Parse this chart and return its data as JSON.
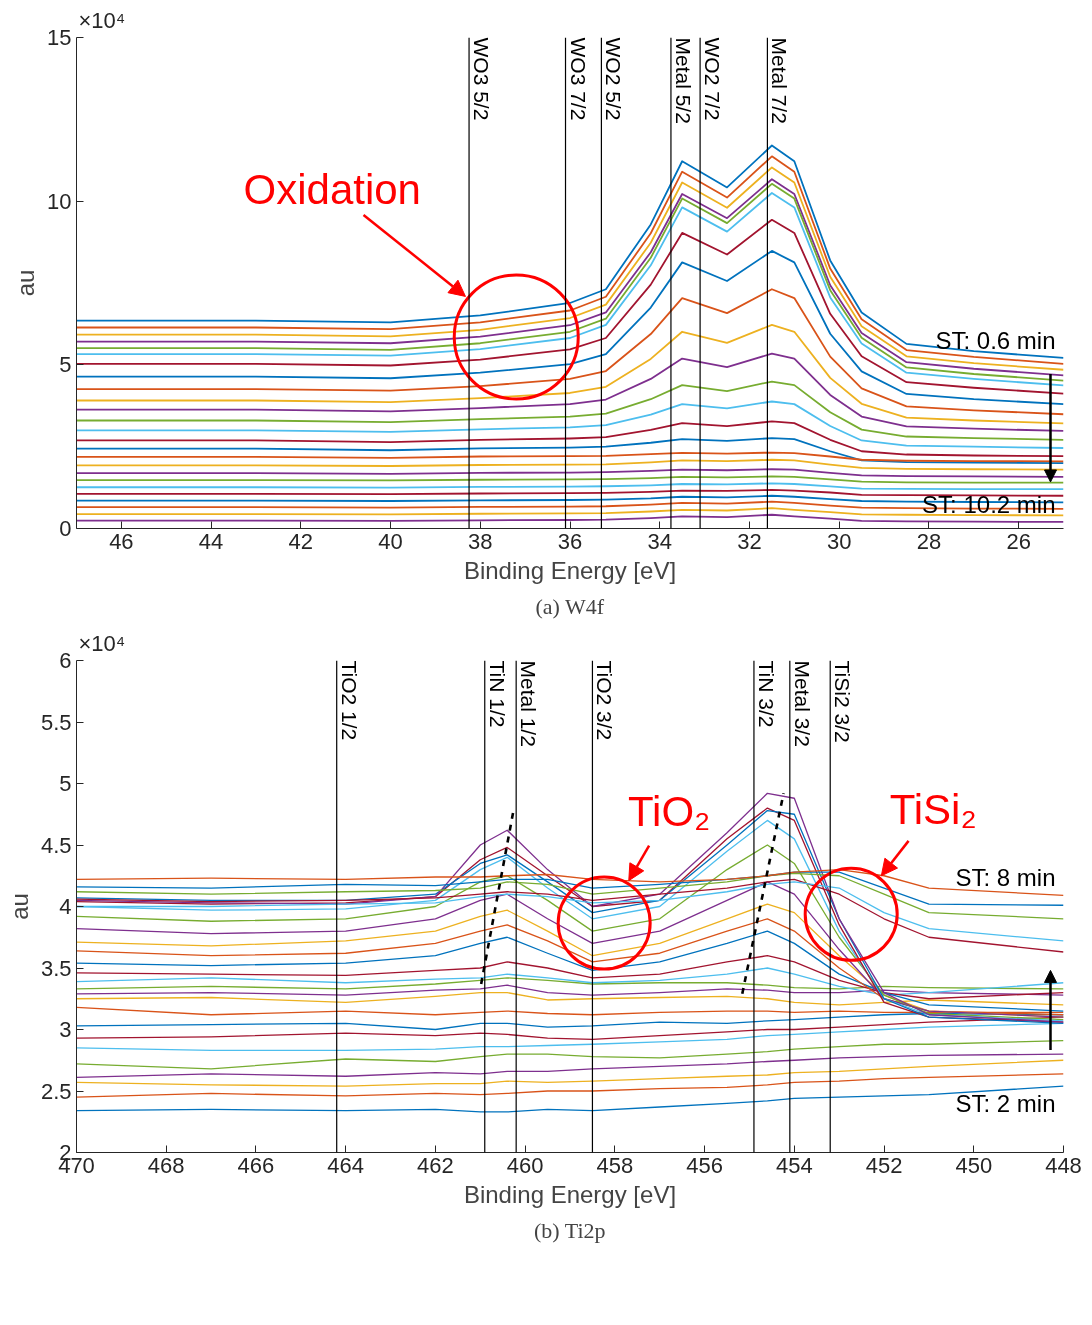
{
  "chart_data": [
    {
      "type": "line",
      "xlabel": "Binding Energy [eV]",
      "ylabel": "au",
      "xlim": [
        47,
        25
      ],
      "xticks": [
        46,
        44,
        42,
        40,
        38,
        36,
        34,
        32,
        30,
        28,
        26
      ],
      "ylim": [
        0,
        15
      ],
      "yticks": [
        0,
        5,
        10,
        15
      ],
      "x": [
        47,
        43,
        40,
        38,
        36,
        35.2,
        34.2,
        33.5,
        32.5,
        31.5,
        31,
        30.2,
        29.5,
        28.5,
        27,
        25
      ],
      "series": [
        {
          "color": "#0072bd",
          "values": [
            6.35,
            6.35,
            6.3,
            6.51,
            6.89,
            7.31,
            9.29,
            11.22,
            10.42,
            11.7,
            11.22,
            8.19,
            6.6,
            5.64,
            5.42,
            5.21
          ]
        },
        {
          "color": "#d95319",
          "values": [
            6.14,
            6.14,
            6.09,
            6.3,
            6.66,
            7.08,
            9.02,
            10.9,
            10.11,
            11.37,
            10.9,
            7.94,
            6.39,
            5.45,
            5.24,
            5.03
          ]
        },
        {
          "color": "#edb120",
          "values": [
            5.92,
            5.92,
            5.87,
            6.07,
            6.43,
            6.84,
            8.73,
            10.57,
            9.8,
            11.03,
            10.57,
            7.69,
            6.18,
            5.26,
            5.05,
            4.85
          ]
        },
        {
          "color": "#7e2f8e",
          "values": [
            5.71,
            5.71,
            5.66,
            5.86,
            6.21,
            6.6,
            8.44,
            10.22,
            9.48,
            10.67,
            10.22,
            7.43,
            5.97,
            5.08,
            4.88,
            4.68
          ]
        },
        {
          "color": "#77ac30",
          "values": [
            5.51,
            5.51,
            5.46,
            5.66,
            6.01,
            6.41,
            8.27,
            10.08,
            9.33,
            10.53,
            10.08,
            7.28,
            5.83,
            4.92,
            4.72,
            4.52
          ]
        },
        {
          "color": "#4dbeee",
          "values": [
            5.33,
            5.33,
            5.28,
            5.48,
            5.82,
            6.22,
            8.04,
            9.81,
            9.07,
            10.25,
            9.81,
            7.06,
            5.65,
            4.76,
            4.57,
            4.37
          ]
        },
        {
          "color": "#a2142f",
          "values": [
            5.03,
            5.03,
            4.98,
            5.16,
            5.47,
            5.82,
            7.45,
            9.03,
            8.37,
            9.43,
            9.03,
            6.56,
            5.26,
            4.47,
            4.3,
            4.12
          ]
        },
        {
          "color": "#0072bd",
          "values": [
            4.64,
            4.64,
            4.59,
            4.76,
            5.02,
            5.33,
            6.75,
            8.13,
            7.56,
            8.48,
            8.13,
            5.95,
            4.8,
            4.11,
            3.95,
            3.8
          ]
        },
        {
          "color": "#d95319",
          "values": [
            4.26,
            4.26,
            4.21,
            4.35,
            4.57,
            4.81,
            5.94,
            7.04,
            6.58,
            7.31,
            7.04,
            5.25,
            4.28,
            3.73,
            3.61,
            3.49
          ]
        },
        {
          "color": "#edb120",
          "values": [
            3.91,
            3.91,
            3.86,
            3.98,
            4.14,
            4.33,
            5.18,
            6.01,
            5.67,
            6.22,
            6.01,
            4.6,
            3.81,
            3.39,
            3.3,
            3.21
          ]
        },
        {
          "color": "#7e2f8e",
          "values": [
            3.63,
            3.63,
            3.58,
            3.68,
            3.8,
            3.94,
            4.57,
            5.19,
            4.93,
            5.34,
            5.19,
            4.08,
            3.42,
            3.12,
            3.05,
            2.98
          ]
        },
        {
          "color": "#77ac30",
          "values": [
            3.3,
            3.3,
            3.25,
            3.34,
            3.42,
            3.51,
            3.95,
            4.38,
            4.2,
            4.49,
            4.38,
            3.55,
            3.02,
            2.81,
            2.76,
            2.71
          ]
        },
        {
          "color": "#4dbeee",
          "values": [
            3.0,
            3.0,
            2.95,
            3.03,
            3.09,
            3.16,
            3.48,
            3.8,
            3.67,
            3.88,
            3.8,
            3.13,
            2.69,
            2.53,
            2.5,
            2.46
          ]
        },
        {
          "color": "#a2142f",
          "values": [
            2.69,
            2.69,
            2.64,
            2.71,
            2.75,
            2.79,
            3.01,
            3.22,
            3.13,
            3.27,
            3.22,
            2.71,
            2.36,
            2.26,
            2.23,
            2.21
          ]
        },
        {
          "color": "#0072bd",
          "values": [
            2.44,
            2.44,
            2.39,
            2.45,
            2.47,
            2.5,
            2.62,
            2.73,
            2.68,
            2.76,
            2.73,
            2.36,
            2.08,
            2.03,
            2.01,
            2.0
          ]
        },
        {
          "color": "#d95319",
          "values": [
            2.19,
            2.19,
            2.16,
            2.2,
            2.21,
            2.22,
            2.27,
            2.31,
            2.29,
            2.32,
            2.3,
            2.2,
            2.1,
            2.07,
            2.06,
            2.05
          ]
        },
        {
          "color": "#edb120",
          "values": [
            1.93,
            1.93,
            1.91,
            1.94,
            1.95,
            1.96,
            2.02,
            2.08,
            2.06,
            2.1,
            2.08,
            1.95,
            1.85,
            1.82,
            1.81,
            1.8
          ]
        },
        {
          "color": "#7e2f8e",
          "values": [
            1.69,
            1.69,
            1.67,
            1.7,
            1.71,
            1.72,
            1.76,
            1.8,
            1.78,
            1.81,
            1.8,
            1.7,
            1.62,
            1.6,
            1.59,
            1.58
          ]
        },
        {
          "color": "#77ac30",
          "values": [
            1.48,
            1.48,
            1.47,
            1.49,
            1.5,
            1.51,
            1.54,
            1.58,
            1.56,
            1.59,
            1.58,
            1.5,
            1.43,
            1.41,
            1.4,
            1.4
          ]
        },
        {
          "color": "#4dbeee",
          "values": [
            1.26,
            1.26,
            1.25,
            1.27,
            1.28,
            1.29,
            1.32,
            1.36,
            1.35,
            1.38,
            1.36,
            1.29,
            1.22,
            1.21,
            1.2,
            1.2
          ]
        },
        {
          "color": "#a2142f",
          "values": [
            1.06,
            1.06,
            1.05,
            1.07,
            1.08,
            1.09,
            1.12,
            1.16,
            1.15,
            1.18,
            1.16,
            1.1,
            1.03,
            1.02,
            1.01,
            1.0
          ]
        },
        {
          "color": "#0072bd",
          "values": [
            0.85,
            0.85,
            0.84,
            0.86,
            0.87,
            0.88,
            0.92,
            0.97,
            0.95,
            1.0,
            0.97,
            0.9,
            0.84,
            0.82,
            0.81,
            0.8
          ]
        },
        {
          "color": "#d95319",
          "values": [
            0.65,
            0.65,
            0.64,
            0.66,
            0.67,
            0.68,
            0.73,
            0.78,
            0.76,
            0.82,
            0.78,
            0.7,
            0.64,
            0.62,
            0.61,
            0.6
          ]
        },
        {
          "color": "#edb120",
          "values": [
            0.44,
            0.44,
            0.43,
            0.45,
            0.46,
            0.47,
            0.52,
            0.57,
            0.55,
            0.62,
            0.57,
            0.5,
            0.43,
            0.42,
            0.41,
            0.4
          ]
        },
        {
          "color": "#7e2f8e",
          "values": [
            0.24,
            0.24,
            0.23,
            0.25,
            0.26,
            0.27,
            0.32,
            0.37,
            0.35,
            0.42,
            0.37,
            0.3,
            0.23,
            0.22,
            0.21,
            0.2
          ]
        }
      ],
      "ref_lines": [
        {
          "axis": "x",
          "value": 38.25,
          "label": "WO3 5/2"
        },
        {
          "axis": "x",
          "value": 36.1,
          "label": "WO3 7/2"
        },
        {
          "axis": "x",
          "value": 35.3,
          "label": "WO2 5/2"
        },
        {
          "axis": "x",
          "value": 33.75,
          "label": "Metal 5/2"
        },
        {
          "axis": "x",
          "value": 33.1,
          "label": "WO2 7/2"
        },
        {
          "axis": "x",
          "value": 31.6,
          "label": "Metal 7/2"
        }
      ],
      "annotations": [
        "×10⁴",
        "(a) W4f",
        {
          "text": "Oxidation",
          "x": 38.33,
          "y": 7.09
        },
        {
          "text": "ST: 0.6 min",
          "x": 25,
          "y": 5.21
        },
        {
          "text": "ST: 10.2 min",
          "x": 25,
          "y": 0.2
        }
      ]
    },
    {
      "type": "line",
      "xlabel": "Binding Energy [eV]",
      "ylabel": "au",
      "xlim": [
        470,
        448
      ],
      "xticks": [
        470,
        468,
        466,
        464,
        462,
        460,
        458,
        456,
        454,
        452,
        450,
        448
      ],
      "ylim": [
        2,
        6
      ],
      "yticks": [
        2,
        2.5,
        3,
        3.5,
        4,
        4.5,
        5,
        5.5,
        6
      ],
      "x": [
        470,
        467,
        464,
        462,
        461,
        460.4,
        459.5,
        458.5,
        457,
        455.5,
        454.6,
        454,
        453,
        452,
        451,
        448
      ],
      "series": [
        {
          "color": "#0072bd",
          "values": [
            2.34,
            2.35,
            2.34,
            2.35,
            2.33,
            2.33,
            2.35,
            2.34,
            2.37,
            2.4,
            2.42,
            2.44,
            2.45,
            2.46,
            2.47,
            2.54
          ]
        },
        {
          "color": "#d95319",
          "values": [
            2.45,
            2.48,
            2.46,
            2.48,
            2.47,
            2.48,
            2.5,
            2.5,
            2.52,
            2.53,
            2.55,
            2.57,
            2.58,
            2.6,
            2.61,
            2.64
          ]
        },
        {
          "color": "#edb120",
          "values": [
            2.57,
            2.55,
            2.54,
            2.56,
            2.56,
            2.58,
            2.57,
            2.58,
            2.6,
            2.62,
            2.63,
            2.65,
            2.66,
            2.68,
            2.7,
            2.75
          ]
        },
        {
          "color": "#7e2f8e",
          "values": [
            2.61,
            2.64,
            2.62,
            2.65,
            2.64,
            2.66,
            2.66,
            2.68,
            2.7,
            2.72,
            2.74,
            2.75,
            2.77,
            2.78,
            2.79,
            2.8
          ]
        },
        {
          "color": "#77ac30",
          "values": [
            2.72,
            2.68,
            2.76,
            2.74,
            2.78,
            2.8,
            2.8,
            2.78,
            2.77,
            2.8,
            2.82,
            2.84,
            2.86,
            2.88,
            2.88,
            2.91
          ]
        },
        {
          "color": "#4dbeee",
          "values": [
            2.85,
            2.83,
            2.83,
            2.84,
            2.86,
            2.86,
            2.87,
            2.88,
            2.9,
            2.92,
            2.95,
            2.96,
            2.98,
            3.0,
            3.02,
            3.05
          ]
        },
        {
          "color": "#a2142f",
          "values": [
            2.93,
            2.94,
            2.97,
            2.95,
            2.97,
            2.96,
            2.93,
            2.92,
            2.95,
            2.98,
            3.0,
            3.0,
            3.02,
            3.04,
            3.06,
            3.1
          ]
        },
        {
          "color": "#0072bd",
          "values": [
            3.03,
            3.04,
            3.05,
            3.0,
            3.05,
            3.05,
            3.02,
            3.03,
            3.06,
            3.05,
            3.07,
            3.08,
            3.1,
            3.12,
            3.13,
            3.12
          ]
        },
        {
          "color": "#d95319",
          "values": [
            3.18,
            3.12,
            3.15,
            3.12,
            3.14,
            3.15,
            3.13,
            3.12,
            3.14,
            3.15,
            3.15,
            3.14,
            3.15,
            3.14,
            3.14,
            3.14
          ]
        },
        {
          "color": "#edb120",
          "values": [
            3.25,
            3.26,
            3.22,
            3.27,
            3.3,
            3.3,
            3.24,
            3.25,
            3.26,
            3.27,
            3.25,
            3.22,
            3.2,
            3.22,
            3.24,
            3.2
          ]
        },
        {
          "color": "#7e2f8e",
          "values": [
            3.29,
            3.3,
            3.28,
            3.32,
            3.33,
            3.36,
            3.3,
            3.28,
            3.3,
            3.33,
            3.32,
            3.3,
            3.3,
            3.32,
            3.3,
            3.28
          ]
        },
        {
          "color": "#77ac30",
          "values": [
            3.33,
            3.35,
            3.33,
            3.37,
            3.4,
            3.42,
            3.4,
            3.37,
            3.38,
            3.38,
            3.36,
            3.34,
            3.33,
            3.35,
            3.34,
            3.33
          ]
        },
        {
          "color": "#4dbeee",
          "values": [
            3.39,
            3.42,
            3.38,
            3.41,
            3.42,
            3.45,
            3.42,
            3.38,
            3.4,
            3.45,
            3.5,
            3.45,
            3.35,
            3.28,
            3.3,
            3.38
          ]
        },
        {
          "color": "#a2142f",
          "values": [
            3.46,
            3.45,
            3.44,
            3.48,
            3.5,
            3.55,
            3.5,
            3.42,
            3.45,
            3.55,
            3.6,
            3.55,
            3.4,
            3.3,
            3.25,
            3.3
          ]
        },
        {
          "color": "#0072bd",
          "values": [
            3.54,
            3.52,
            3.54,
            3.6,
            3.7,
            3.75,
            3.62,
            3.48,
            3.55,
            3.7,
            3.8,
            3.7,
            3.45,
            3.3,
            3.2,
            3.15
          ]
        },
        {
          "color": "#d95319",
          "values": [
            3.64,
            3.6,
            3.62,
            3.7,
            3.8,
            3.85,
            3.72,
            3.55,
            3.62,
            3.8,
            3.9,
            3.8,
            3.5,
            3.25,
            3.15,
            3.12
          ]
        },
        {
          "color": "#edb120",
          "values": [
            3.71,
            3.68,
            3.72,
            3.8,
            3.92,
            3.97,
            3.8,
            3.6,
            3.7,
            3.9,
            4.02,
            3.95,
            3.6,
            3.28,
            3.15,
            3.1
          ]
        },
        {
          "color": "#7e2f8e",
          "values": [
            3.82,
            3.78,
            3.8,
            3.9,
            4.05,
            4.1,
            3.9,
            3.7,
            3.8,
            4.05,
            4.2,
            4.1,
            3.65,
            3.25,
            3.15,
            3.1
          ]
        },
        {
          "color": "#77ac30",
          "values": [
            3.92,
            3.88,
            3.9,
            4.0,
            4.2,
            4.25,
            4.05,
            3.8,
            3.9,
            4.3,
            4.5,
            4.35,
            3.75,
            3.28,
            3.13,
            3.08
          ]
        },
        {
          "color": "#4dbeee",
          "values": [
            4.0,
            3.97,
            3.98,
            4.05,
            4.3,
            4.4,
            4.15,
            3.9,
            4.0,
            4.45,
            4.7,
            4.55,
            3.8,
            3.25,
            3.12,
            3.07
          ]
        },
        {
          "color": "#a2142f",
          "values": [
            4.04,
            4.02,
            4.03,
            4.08,
            4.38,
            4.48,
            4.25,
            4.0,
            4.05,
            4.55,
            4.8,
            4.7,
            3.85,
            3.22,
            3.1,
            3.06
          ]
        },
        {
          "color": "#0072bd",
          "values": [
            4.07,
            4.05,
            4.05,
            4.1,
            4.35,
            4.42,
            4.2,
            3.95,
            4.05,
            4.5,
            4.78,
            4.75,
            3.9,
            3.25,
            3.1,
            3.05
          ]
        },
        {
          "color": "#7e2f8e",
          "values": [
            4.05,
            4.03,
            4.02,
            4.08,
            4.5,
            4.62,
            4.3,
            4.0,
            4.1,
            4.6,
            4.92,
            4.88,
            3.9,
            3.3,
            3.12,
            3.06
          ]
        },
        {
          "color": "#77ac30",
          "values": [
            4.12,
            4.1,
            4.12,
            4.13,
            4.15,
            4.2,
            4.18,
            4.1,
            4.15,
            4.2,
            4.25,
            4.27,
            4.25,
            4.1,
            3.95,
            3.9
          ]
        },
        {
          "color": "#0072bd",
          "values": [
            4.16,
            4.15,
            4.18,
            4.17,
            4.2,
            4.22,
            4.22,
            4.15,
            4.18,
            4.22,
            4.25,
            4.28,
            4.28,
            4.15,
            4.02,
            4.01
          ]
        },
        {
          "color": "#d95319",
          "values": [
            4.22,
            4.23,
            4.22,
            4.24,
            4.24,
            4.25,
            4.26,
            4.22,
            4.2,
            4.22,
            4.25,
            4.28,
            4.3,
            4.25,
            4.15,
            4.09
          ]
        },
        {
          "color": "#a2142f",
          "values": [
            4.06,
            4.04,
            4.05,
            4.07,
            4.1,
            4.12,
            4.1,
            4.05,
            4.1,
            4.15,
            4.2,
            4.22,
            4.1,
            3.9,
            3.75,
            3.63
          ]
        },
        {
          "color": "#4dbeee",
          "values": [
            4.0,
            4.0,
            4.02,
            4.03,
            4.08,
            4.1,
            4.08,
            4.03,
            4.05,
            4.12,
            4.18,
            4.2,
            4.15,
            3.95,
            3.82,
            3.72
          ]
        },
        {
          "type": "line",
          "line_style": "dashed",
          "color": "#000000",
          "x": [
            460.98,
            460.27
          ],
          "values": [
            3.37,
            4.76
          ]
        },
        {
          "type": "line",
          "line_style": "dashed",
          "color": "#000000",
          "x": [
            455.16,
            454.24
          ],
          "values": [
            3.29,
            4.92
          ]
        }
      ],
      "ref_lines": [
        {
          "axis": "x",
          "value": 464.2,
          "label": "TiO2 1/2"
        },
        {
          "axis": "x",
          "value": 460.9,
          "label": "TiN 1/2"
        },
        {
          "axis": "x",
          "value": 460.2,
          "label": "Metal 1/2"
        },
        {
          "axis": "x",
          "value": 458.5,
          "label": "TiO2 3/2"
        },
        {
          "axis": "x",
          "value": 454.9,
          "label": "TiN 3/2"
        },
        {
          "axis": "x",
          "value": 454.1,
          "label": "Metal 3/2"
        },
        {
          "axis": "x",
          "value": 453.2,
          "label": "TiSi2 3/2"
        }
      ],
      "annotations": [
        "×10⁴",
        "(b) Ti2p",
        {
          "text": "TiO₂",
          "x": 457.69,
          "y": 4.21
        },
        {
          "text": "TiSi₂",
          "x": 452.06,
          "y": 4.25
        },
        {
          "text": "ST: 2 min",
          "x": 448,
          "y": 2.54
        },
        {
          "text": "ST: 8 min",
          "x": 448,
          "y": 4.09
        }
      ]
    }
  ]
}
